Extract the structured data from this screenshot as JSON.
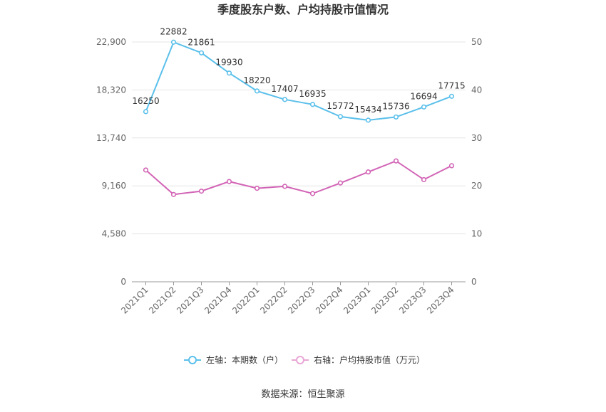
{
  "chart_data": {
    "type": "line",
    "title": "季度股东户数、户均持股市值情况",
    "categories": [
      "2021Q1",
      "2021Q2",
      "2021Q3",
      "2021Q4",
      "2022Q1",
      "2022Q2",
      "2022Q3",
      "2022Q4",
      "2023Q1",
      "2023Q2",
      "2023Q3",
      "2023Q4"
    ],
    "left_axis": {
      "ticks": [
        0,
        4580,
        9160,
        13740,
        18320,
        22900
      ],
      "tick_labels": [
        "0",
        "4,580",
        "9,160",
        "13,740",
        "18,320",
        "22,900"
      ],
      "range": [
        0,
        22900
      ]
    },
    "right_axis": {
      "ticks": [
        0,
        10,
        20,
        30,
        40,
        50
      ],
      "tick_labels": [
        "0",
        "10",
        "20",
        "30",
        "40",
        "50"
      ],
      "range": [
        0,
        50
      ]
    },
    "series": [
      {
        "name": "左轴：本期数（户）",
        "axis": "left",
        "color": "#5bc0eb",
        "values": [
          16250,
          22882,
          21861,
          19930,
          18220,
          17407,
          16935,
          15772,
          15434,
          15736,
          16694,
          17715
        ],
        "labels": [
          "16250",
          "22882",
          "21861",
          "19930",
          "18220",
          "17407",
          "16935",
          "15772",
          "15434",
          "15736",
          "16694",
          "17715"
        ]
      },
      {
        "name": "右轴：户均持股市值（万元）",
        "axis": "right",
        "color": "#d264b6",
        "values": [
          23.3,
          18.2,
          18.9,
          20.9,
          19.5,
          19.9,
          18.4,
          20.6,
          22.9,
          25.2,
          21.3,
          24.2
        ]
      }
    ],
    "grid": true,
    "legend_position": "bottom",
    "source": "数据来源：恒生聚源"
  }
}
